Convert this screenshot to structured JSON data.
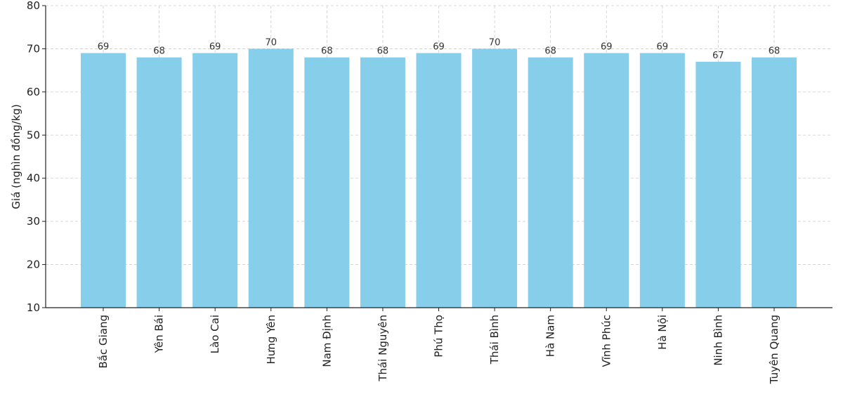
{
  "chart_data": {
    "type": "bar",
    "title": "",
    "xlabel": "",
    "ylabel": "Giá (nghìn đồng/kg)",
    "ylim": [
      10,
      80
    ],
    "yticks": [
      10,
      20,
      30,
      40,
      50,
      60,
      70,
      80
    ],
    "grid": true,
    "categories": [
      "Bắc Giang",
      "Yên Bái",
      "Lào Cai",
      "Hưng Yên",
      "Nam Định",
      "Thái Nguyên",
      "Phú Thọ",
      "Thái Bình",
      "Hà Nam",
      "Vĩnh Phúc",
      "Hà Nội",
      "Ninh Bình",
      "Tuyên Quang"
    ],
    "values": [
      69,
      68,
      69,
      70,
      68,
      68,
      69,
      70,
      68,
      69,
      69,
      67,
      68
    ],
    "bar_color": "#87CEEB"
  }
}
